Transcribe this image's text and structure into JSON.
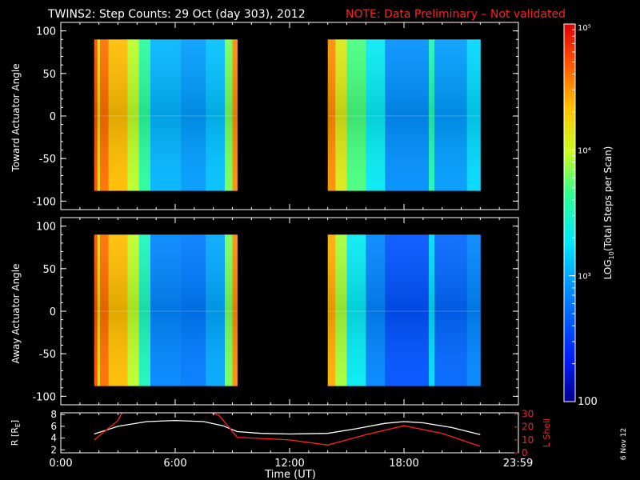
{
  "title": {
    "main": "TWINS2: Step Counts: 29 Oct (day 303), 2012",
    "note": "NOTE: Data Preliminary – Not validated"
  },
  "colors": {
    "background": "#000000",
    "axes": "#ffffff",
    "note": "#ff2020",
    "r_line": "#ffffff",
    "lshell_line": "#ff2020"
  },
  "colorbar": {
    "label": "LOG10(Total Steps per Scan)",
    "label_base": "LOG",
    "label_sub": "10",
    "label_rest": "(Total Steps per Scan)",
    "scale": "log",
    "range": [
      100,
      100000
    ],
    "ticks": [
      {
        "value": 100,
        "label": "100"
      },
      {
        "value": 1000,
        "label": "10³"
      },
      {
        "value": 10000,
        "label": "10⁴"
      },
      {
        "value": 100000,
        "label": "10⁵"
      }
    ]
  },
  "side_stamp": "6 Nov 12",
  "chart_data": [
    {
      "type": "heatmap",
      "panel": "toward",
      "ylabel": "Toward Actuator Angle",
      "xlim": [
        0,
        24
      ],
      "ylim": [
        -110,
        110
      ],
      "yticks": [
        100,
        50,
        0,
        -50,
        -100
      ],
      "angle_range": [
        -88,
        90
      ],
      "blocks": [
        {
          "t_start": 1.75,
          "t_end": 9.25,
          "columns": [
            {
              "t_start": 1.75,
              "t_end": 1.92,
              "value_log": 4.7
            },
            {
              "t_start": 1.92,
              "t_end": 2.05,
              "value_log": 4.2
            },
            {
              "t_start": 2.05,
              "t_end": 2.5,
              "value_log": 4.6
            },
            {
              "t_start": 2.5,
              "t_end": 3.5,
              "value_log": 4.35
            },
            {
              "t_start": 3.5,
              "t_end": 4.1,
              "value_log": 3.95
            },
            {
              "t_start": 4.1,
              "t_end": 4.7,
              "value_log": 3.6
            },
            {
              "t_start": 4.7,
              "t_end": 6.3,
              "value_log": 3.05
            },
            {
              "t_start": 6.3,
              "t_end": 7.6,
              "value_log": 2.95
            },
            {
              "t_start": 7.6,
              "t_end": 8.6,
              "value_log": 3.1
            },
            {
              "t_start": 8.6,
              "t_end": 9.0,
              "value_log": 3.8
            },
            {
              "t_start": 9.0,
              "t_end": 9.25,
              "value_log": 4.5
            }
          ]
        },
        {
          "t_start": 14.0,
          "t_end": 22.0,
          "columns": [
            {
              "t_start": 14.0,
              "t_end": 14.4,
              "value_log": 4.5
            },
            {
              "t_start": 14.4,
              "t_end": 15.0,
              "value_log": 4.1
            },
            {
              "t_start": 15.0,
              "t_end": 16.0,
              "value_log": 3.7
            },
            {
              "t_start": 16.0,
              "t_end": 17.0,
              "value_log": 3.3
            },
            {
              "t_start": 17.0,
              "t_end": 19.3,
              "value_log": 2.9
            },
            {
              "t_start": 19.3,
              "t_end": 19.6,
              "value_log": 3.5
            },
            {
              "t_start": 19.6,
              "t_end": 21.3,
              "value_log": 2.95
            },
            {
              "t_start": 21.3,
              "t_end": 22.0,
              "value_log": 3.2
            }
          ]
        }
      ]
    },
    {
      "type": "heatmap",
      "panel": "away",
      "ylabel": "Away Actuator Angle",
      "xlim": [
        0,
        24
      ],
      "ylim": [
        -110,
        110
      ],
      "yticks": [
        100,
        50,
        0,
        -50,
        -100
      ],
      "angle_range": [
        -88,
        90
      ],
      "blocks": [
        {
          "t_start": 1.75,
          "t_end": 9.25,
          "columns": [
            {
              "t_start": 1.75,
              "t_end": 1.92,
              "value_log": 4.7
            },
            {
              "t_start": 1.92,
              "t_end": 2.05,
              "value_log": 4.2
            },
            {
              "t_start": 2.05,
              "t_end": 2.5,
              "value_log": 4.6
            },
            {
              "t_start": 2.5,
              "t_end": 3.5,
              "value_log": 4.35
            },
            {
              "t_start": 3.5,
              "t_end": 4.1,
              "value_log": 3.95
            },
            {
              "t_start": 4.1,
              "t_end": 4.7,
              "value_log": 3.5
            },
            {
              "t_start": 4.7,
              "t_end": 6.3,
              "value_log": 2.85
            },
            {
              "t_start": 6.3,
              "t_end": 7.6,
              "value_log": 2.8
            },
            {
              "t_start": 7.6,
              "t_end": 8.6,
              "value_log": 3.0
            },
            {
              "t_start": 8.6,
              "t_end": 9.0,
              "value_log": 3.8
            },
            {
              "t_start": 9.0,
              "t_end": 9.25,
              "value_log": 4.5
            }
          ]
        },
        {
          "t_start": 14.0,
          "t_end": 22.0,
          "columns": [
            {
              "t_start": 14.0,
              "t_end": 14.4,
              "value_log": 4.4
            },
            {
              "t_start": 14.4,
              "t_end": 15.0,
              "value_log": 3.9
            },
            {
              "t_start": 15.0,
              "t_end": 16.0,
              "value_log": 3.3
            },
            {
              "t_start": 16.0,
              "t_end": 17.0,
              "value_log": 2.85
            },
            {
              "t_start": 17.0,
              "t_end": 19.3,
              "value_log": 2.6
            },
            {
              "t_start": 19.3,
              "t_end": 19.6,
              "value_log": 3.2
            },
            {
              "t_start": 19.6,
              "t_end": 21.3,
              "value_log": 2.7
            },
            {
              "t_start": 21.3,
              "t_end": 22.0,
              "value_log": 2.85
            }
          ]
        }
      ]
    },
    {
      "type": "line",
      "panel": "orbit",
      "xlabel": "Time (UT)",
      "xlim": [
        0,
        24
      ],
      "xticks": [
        {
          "value": 0,
          "label": "0:00"
        },
        {
          "value": 6,
          "label": "6:00"
        },
        {
          "value": 12,
          "label": "12:00"
        },
        {
          "value": 18,
          "label": "18:00"
        },
        {
          "value": 23.98,
          "label": "23:59"
        }
      ],
      "ylabel_left": "R [RE]",
      "ylabel_left_base": "R [R",
      "ylabel_left_sub": "E",
      "ylabel_left_end": "]",
      "ylim_left": [
        1.5,
        8.3
      ],
      "yticks_left": [
        2,
        4,
        6,
        8
      ],
      "ylabel_right": "L Shell",
      "ylim_right": [
        0,
        31
      ],
      "yticks_right": [
        0,
        10,
        20,
        30
      ],
      "series": [
        {
          "axis": "left",
          "x": [
            1.75,
            3,
            4.5,
            6,
            7.5,
            8.5,
            9.25,
            10.5,
            12,
            14,
            15.5,
            17,
            18,
            19,
            20.5,
            22
          ],
          "y": [
            4.7,
            6.0,
            6.8,
            7.0,
            6.8,
            6.1,
            5.1,
            4.8,
            4.7,
            4.8,
            5.6,
            6.5,
            6.8,
            6.6,
            5.8,
            4.6
          ]
        },
        {
          "axis": "right",
          "x": [
            1.75,
            3.0,
            3.2
          ],
          "y": [
            10,
            25,
            31
          ]
        },
        {
          "axis": "right",
          "x": [
            7.9,
            8.3,
            9.25,
            12,
            14,
            16,
            18,
            20,
            22
          ],
          "y": [
            31,
            29,
            12,
            10,
            6,
            14,
            21,
            15,
            5
          ]
        }
      ]
    }
  ]
}
